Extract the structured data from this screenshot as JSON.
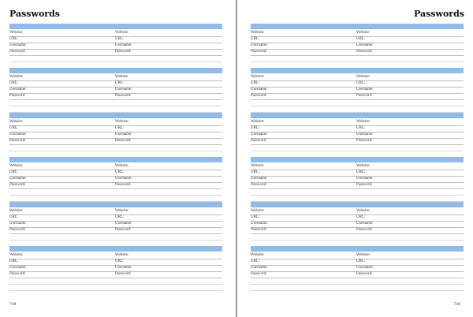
{
  "colors": {
    "header_bar": "#90bbe9"
  },
  "entry_labels": [
    "Website:",
    "URL:",
    "Username:",
    "Password:"
  ],
  "entries_per_page": 6,
  "pages": [
    {
      "side": "left",
      "title": "Passwords",
      "page_number": "748"
    },
    {
      "side": "right",
      "title": "Passwords",
      "page_number": "749"
    }
  ]
}
